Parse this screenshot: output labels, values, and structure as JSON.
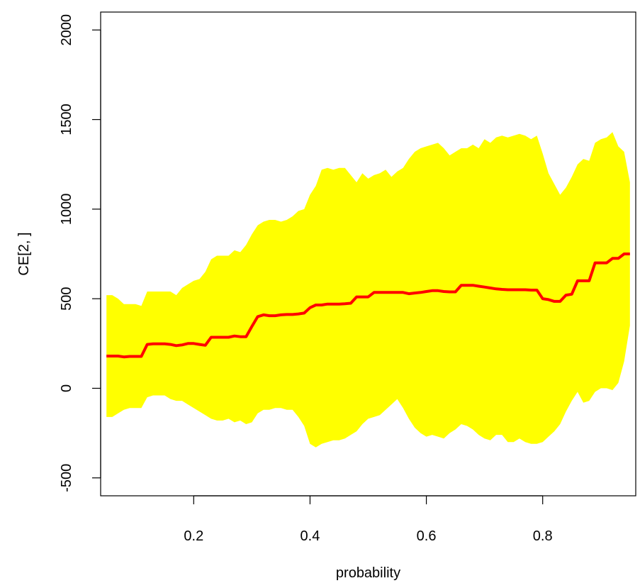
{
  "chart_data": {
    "type": "area",
    "title": "",
    "xlabel": "probability",
    "ylabel": "CE[2, ]",
    "xlim": [
      0.04,
      0.96
    ],
    "ylim": [
      -600,
      2100
    ],
    "x_ticks": [
      0.2,
      0.4,
      0.6,
      0.8
    ],
    "x_tick_labels": [
      "0.2",
      "0.4",
      "0.6",
      "0.8"
    ],
    "y_ticks": [
      -500,
      0,
      500,
      1000,
      1500,
      2000
    ],
    "y_tick_labels": [
      "-500",
      "0",
      "500",
      "1000",
      "1500",
      "2000"
    ],
    "grid": false,
    "colors": {
      "band": "#ffff00",
      "line": "#ff0000"
    },
    "series": [
      {
        "role": "upper-bound",
        "x": [
          0.05,
          0.06,
          0.07,
          0.08,
          0.09,
          0.1,
          0.11,
          0.12,
          0.13,
          0.14,
          0.15,
          0.16,
          0.17,
          0.18,
          0.19,
          0.2,
          0.21,
          0.22,
          0.23,
          0.24,
          0.25,
          0.26,
          0.27,
          0.28,
          0.29,
          0.3,
          0.31,
          0.32,
          0.33,
          0.34,
          0.35,
          0.36,
          0.37,
          0.38,
          0.39,
          0.4,
          0.41,
          0.42,
          0.43,
          0.44,
          0.45,
          0.46,
          0.47,
          0.48,
          0.49,
          0.5,
          0.51,
          0.52,
          0.53,
          0.54,
          0.55,
          0.56,
          0.57,
          0.58,
          0.59,
          0.6,
          0.61,
          0.62,
          0.63,
          0.64,
          0.65,
          0.66,
          0.67,
          0.68,
          0.69,
          0.7,
          0.71,
          0.72,
          0.73,
          0.74,
          0.75,
          0.76,
          0.77,
          0.78,
          0.79,
          0.8,
          0.81,
          0.82,
          0.83,
          0.84,
          0.85,
          0.86,
          0.87,
          0.88,
          0.89,
          0.9,
          0.91,
          0.92,
          0.93,
          0.94,
          0.95
        ],
        "values": [
          520,
          520,
          500,
          470,
          470,
          470,
          460,
          540,
          540,
          540,
          540,
          540,
          520,
          560,
          580,
          600,
          610,
          650,
          720,
          740,
          740,
          740,
          770,
          760,
          800,
          860,
          910,
          930,
          940,
          940,
          930,
          940,
          960,
          990,
          1000,
          1080,
          1130,
          1220,
          1230,
          1220,
          1230,
          1230,
          1190,
          1150,
          1200,
          1170,
          1190,
          1200,
          1220,
          1180,
          1210,
          1230,
          1280,
          1320,
          1340,
          1350,
          1360,
          1370,
          1340,
          1300,
          1320,
          1340,
          1340,
          1360,
          1340,
          1390,
          1370,
          1400,
          1410,
          1400,
          1410,
          1420,
          1410,
          1390,
          1410,
          1310,
          1200,
          1140,
          1080,
          1120,
          1180,
          1250,
          1280,
          1270,
          1370,
          1390,
          1400,
          1430,
          1350,
          1320,
          1150
        ]
      },
      {
        "role": "lower-bound",
        "x": [
          0.05,
          0.06,
          0.07,
          0.08,
          0.09,
          0.1,
          0.11,
          0.12,
          0.13,
          0.14,
          0.15,
          0.16,
          0.17,
          0.18,
          0.19,
          0.2,
          0.21,
          0.22,
          0.23,
          0.24,
          0.25,
          0.26,
          0.27,
          0.28,
          0.29,
          0.3,
          0.31,
          0.32,
          0.33,
          0.34,
          0.35,
          0.36,
          0.37,
          0.38,
          0.39,
          0.4,
          0.41,
          0.42,
          0.43,
          0.44,
          0.45,
          0.46,
          0.47,
          0.48,
          0.49,
          0.5,
          0.51,
          0.52,
          0.53,
          0.54,
          0.55,
          0.56,
          0.57,
          0.58,
          0.59,
          0.6,
          0.61,
          0.62,
          0.63,
          0.64,
          0.65,
          0.66,
          0.67,
          0.68,
          0.69,
          0.7,
          0.71,
          0.72,
          0.73,
          0.74,
          0.75,
          0.76,
          0.77,
          0.78,
          0.79,
          0.8,
          0.81,
          0.82,
          0.83,
          0.84,
          0.85,
          0.86,
          0.87,
          0.88,
          0.89,
          0.9,
          0.91,
          0.92,
          0.93,
          0.94,
          0.95
        ],
        "values": [
          -160,
          -160,
          -140,
          -120,
          -110,
          -110,
          -110,
          -50,
          -40,
          -40,
          -40,
          -60,
          -70,
          -70,
          -90,
          -110,
          -130,
          -150,
          -170,
          -180,
          -180,
          -170,
          -190,
          -180,
          -200,
          -190,
          -140,
          -120,
          -120,
          -110,
          -110,
          -120,
          -120,
          -160,
          -210,
          -310,
          -330,
          -310,
          -300,
          -290,
          -290,
          -280,
          -260,
          -240,
          -200,
          -170,
          -160,
          -150,
          -120,
          -90,
          -60,
          -110,
          -170,
          -220,
          -250,
          -270,
          -260,
          -270,
          -280,
          -250,
          -230,
          -200,
          -210,
          -230,
          -260,
          -280,
          -290,
          -260,
          -260,
          -300,
          -300,
          -280,
          -300,
          -310,
          -310,
          -300,
          -270,
          -240,
          -200,
          -130,
          -70,
          -20,
          -80,
          -70,
          -20,
          0,
          0,
          -10,
          30,
          150,
          350
        ]
      },
      {
        "role": "central-estimate",
        "x": [
          0.05,
          0.06,
          0.07,
          0.08,
          0.09,
          0.1,
          0.11,
          0.12,
          0.13,
          0.14,
          0.15,
          0.16,
          0.17,
          0.18,
          0.19,
          0.2,
          0.21,
          0.22,
          0.23,
          0.24,
          0.25,
          0.26,
          0.27,
          0.28,
          0.29,
          0.3,
          0.31,
          0.32,
          0.33,
          0.34,
          0.35,
          0.36,
          0.37,
          0.38,
          0.39,
          0.4,
          0.41,
          0.42,
          0.43,
          0.44,
          0.45,
          0.46,
          0.47,
          0.48,
          0.49,
          0.5,
          0.51,
          0.52,
          0.53,
          0.54,
          0.55,
          0.56,
          0.57,
          0.58,
          0.59,
          0.6,
          0.61,
          0.62,
          0.63,
          0.64,
          0.65,
          0.66,
          0.67,
          0.68,
          0.69,
          0.7,
          0.71,
          0.72,
          0.73,
          0.74,
          0.75,
          0.76,
          0.77,
          0.78,
          0.79,
          0.8,
          0.81,
          0.82,
          0.83,
          0.84,
          0.85,
          0.86,
          0.87,
          0.88,
          0.89,
          0.9,
          0.91,
          0.92,
          0.93,
          0.94,
          0.95
        ],
        "values": [
          180,
          180,
          180,
          175,
          178,
          178,
          178,
          245,
          248,
          248,
          248,
          245,
          238,
          242,
          250,
          250,
          245,
          240,
          285,
          285,
          285,
          285,
          292,
          288,
          288,
          345,
          400,
          410,
          405,
          405,
          410,
          412,
          412,
          415,
          420,
          450,
          465,
          465,
          470,
          470,
          470,
          472,
          475,
          510,
          510,
          510,
          535,
          535,
          535,
          535,
          535,
          535,
          528,
          532,
          535,
          540,
          545,
          545,
          540,
          538,
          538,
          575,
          575,
          575,
          570,
          565,
          560,
          555,
          552,
          550,
          550,
          550,
          550,
          548,
          548,
          500,
          495,
          485,
          485,
          520,
          525,
          600,
          600,
          600,
          700,
          700,
          700,
          725,
          725,
          750,
          750
        ]
      }
    ]
  }
}
